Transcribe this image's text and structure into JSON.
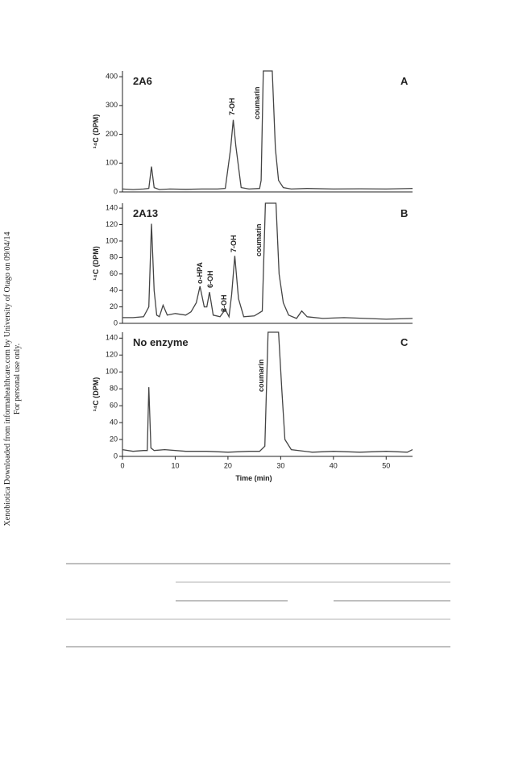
{
  "watermark": [
    "Xenobiotica Downloaded from informahealthcare.com by University of Otago on 09/04/14",
    "For personal use only."
  ],
  "chart_data": [
    {
      "type": "line",
      "panel_label": "2A6",
      "panel_letter": "A",
      "ylabel": "¹⁴C (DPM)",
      "color": "#444444",
      "xlim": [
        0,
        55
      ],
      "ylim": [
        0,
        420
      ],
      "yticks": [
        0,
        100,
        200,
        300,
        400
      ],
      "annotations": [
        "7-OH",
        "coumarin"
      ],
      "x": [
        0,
        2,
        4,
        5,
        5.5,
        6,
        7,
        9,
        12,
        15,
        18,
        19.5,
        20.5,
        21,
        21.5,
        22.5,
        24,
        26,
        26.3,
        26.7,
        28.4,
        29,
        29.6,
        30.5,
        32,
        35,
        40,
        45,
        50,
        55
      ],
      "values": [
        10,
        8,
        10,
        12,
        88,
        15,
        8,
        10,
        9,
        10,
        10,
        12,
        150,
        250,
        160,
        15,
        10,
        12,
        40,
        420,
        420,
        150,
        40,
        15,
        10,
        12,
        10,
        11,
        10,
        12
      ]
    },
    {
      "type": "line",
      "panel_label": "2A13",
      "panel_letter": "B",
      "ylabel": "¹⁴C (DPM)",
      "color": "#444444",
      "xlim": [
        0,
        55
      ],
      "ylim": [
        0,
        146
      ],
      "yticks": [
        0,
        20,
        40,
        60,
        80,
        100,
        120,
        140
      ],
      "annotations": [
        "o-HPA",
        "6-OH",
        "8-OH",
        "7-OH",
        "coumarin"
      ],
      "x": [
        0,
        2,
        4,
        5,
        5.5,
        6,
        6.5,
        7,
        7.7,
        8.5,
        10,
        12,
        13,
        14,
        14.7,
        15.5,
        16,
        16.5,
        17.2,
        18.5,
        19.5,
        20.2,
        20.7,
        21.3,
        22,
        23,
        25,
        26.5,
        27.1,
        29.1,
        29.7,
        30.5,
        31.5,
        33,
        34,
        35,
        38,
        42,
        46,
        50,
        55
      ],
      "values": [
        7,
        7,
        8,
        20,
        121,
        40,
        10,
        8,
        22,
        10,
        12,
        10,
        14,
        25,
        45,
        20,
        20,
        38,
        10,
        8,
        17,
        8,
        35,
        82,
        30,
        8,
        9,
        15,
        146,
        146,
        60,
        25,
        10,
        6,
        15,
        8,
        6,
        7,
        6,
        5,
        6
      ]
    },
    {
      "type": "line",
      "panel_label": "No enzyme",
      "panel_letter": "C",
      "ylabel": "¹⁴C (DPM)",
      "xlabel": "Time (min)",
      "color": "#444444",
      "xlim": [
        0,
        55
      ],
      "ylim": [
        0,
        147
      ],
      "yticks": [
        0,
        20,
        40,
        60,
        80,
        100,
        120,
        140
      ],
      "xticks": [
        0,
        10,
        20,
        30,
        40,
        50
      ],
      "annotations": [
        "coumarin"
      ],
      "x": [
        0,
        2,
        4,
        4.7,
        5,
        5.4,
        6,
        8,
        12,
        16,
        20,
        24,
        26,
        27,
        27.6,
        29.6,
        30.2,
        30.8,
        32,
        36,
        40,
        45,
        50,
        54,
        55
      ],
      "values": [
        8,
        6,
        7,
        7,
        82,
        10,
        7,
        8,
        6,
        6,
        5,
        6,
        6,
        12,
        147,
        147,
        80,
        20,
        8,
        5,
        6,
        5,
        6,
        5,
        8
      ]
    }
  ]
}
